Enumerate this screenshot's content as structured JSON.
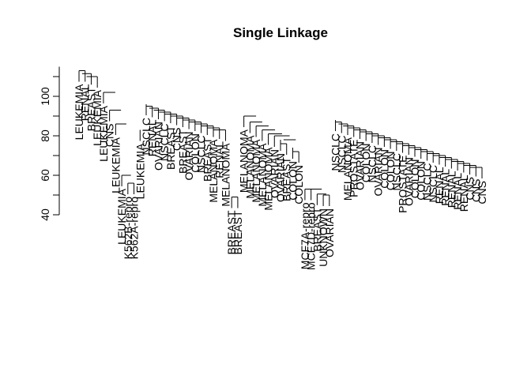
{
  "chart_data": {
    "type": "dendrogram",
    "title": "Single Linkage",
    "xlabel": "",
    "ylabel": "",
    "ylim": [
      40,
      115
    ],
    "y_ticks": [
      40,
      60,
      80,
      100
    ],
    "grid": false,
    "leaves": [
      {
        "label": "LEUKEMIA",
        "y": 113.0
      },
      {
        "label": "RENAL",
        "y": 113.0
      },
      {
        "label": "BREAST",
        "y": 111.5
      },
      {
        "label": "LEUKEMIA",
        "y": 110.0
      },
      {
        "label": "LEUKEMIA",
        "y": 102.0
      },
      {
        "label": "CNS",
        "y": 93.0
      },
      {
        "label": "LEUKEMIA",
        "y": 86.0
      },
      {
        "label": "LEUKEMIA",
        "y": 60.0
      },
      {
        "label": "K562B-repro",
        "y": 56.0
      },
      {
        "label": "K562A-repro",
        "y": 56.0
      },
      {
        "label": "LEUKEMIA",
        "y": 83.0
      },
      {
        "label": "NSCLC",
        "y": 96.0
      },
      {
        "label": "RENAL",
        "y": 95.0
      },
      {
        "label": "OVARIAN",
        "y": 94.0
      },
      {
        "label": "NSCLC",
        "y": 93.0
      },
      {
        "label": "BREAST",
        "y": 92.0
      },
      {
        "label": "CNS",
        "y": 91.0
      },
      {
        "label": "BREAST",
        "y": 90.0
      },
      {
        "label": "OVARIAN",
        "y": 89.0
      },
      {
        "label": "COLON",
        "y": 88.0
      },
      {
        "label": "NSCLC",
        "y": 87.0
      },
      {
        "label": "BREAST",
        "y": 86.0
      },
      {
        "label": "MELANOMA",
        "y": 85.0
      },
      {
        "label": "RENAL",
        "y": 84.0
      },
      {
        "label": "MELANOMA",
        "y": 83.0
      },
      {
        "label": "BREAST",
        "y": 49.0
      },
      {
        "label": "BREAST",
        "y": 49.0
      },
      {
        "label": "MELANOMA",
        "y": 90.0
      },
      {
        "label": "MELANOMA",
        "y": 87.0
      },
      {
        "label": "MELANOMA",
        "y": 85.0
      },
      {
        "label": "MELANOMA",
        "y": 83.0
      },
      {
        "label": "MELANOMA",
        "y": 81.0
      },
      {
        "label": "OVARIAN",
        "y": 80.0
      },
      {
        "label": "OVARIAN",
        "y": 78.0
      },
      {
        "label": "BREAST",
        "y": 76.0
      },
      {
        "label": "COLON",
        "y": 74.0
      },
      {
        "label": "COLON",
        "y": 72.0
      },
      {
        "label": "MCF7A-repro",
        "y": 53.0
      },
      {
        "label": "MCF7D-repro",
        "y": 53.0
      },
      {
        "label": "BREAST",
        "y": 50.5
      },
      {
        "label": "UNKNOWN",
        "y": 50.0
      },
      {
        "label": "OVARIAN",
        "y": 50.0
      },
      {
        "label": "NSCLC",
        "y": 88.0
      },
      {
        "label": "NSCLC",
        "y": 87.0
      },
      {
        "label": "MELANOMA",
        "y": 86.0
      },
      {
        "label": "PROSTATE",
        "y": 85.0
      },
      {
        "label": "OVARIAN",
        "y": 84.0
      },
      {
        "label": "COLON",
        "y": 83.0
      },
      {
        "label": "NSCLC",
        "y": 82.0
      },
      {
        "label": "OVARIAN",
        "y": 81.0
      },
      {
        "label": "COLON",
        "y": 80.0
      },
      {
        "label": "COLON",
        "y": 79.0
      },
      {
        "label": "NSCLC",
        "y": 78.0
      },
      {
        "label": "PROSTATE",
        "y": 77.0
      },
      {
        "label": "OVARIAN",
        "y": 76.0
      },
      {
        "label": "COLON",
        "y": 75.0
      },
      {
        "label": "COLON",
        "y": 74.0
      },
      {
        "label": "NSCLC",
        "y": 73.0
      },
      {
        "label": "NSCLC",
        "y": 72.0
      },
      {
        "label": "RENAL",
        "y": 71.0
      },
      {
        "label": "RENAL",
        "y": 70.0
      },
      {
        "label": "RENAL",
        "y": 69.0
      },
      {
        "label": "RENAL",
        "y": 68.0
      },
      {
        "label": "RENAL",
        "y": 67.0
      },
      {
        "label": "CNS",
        "y": 66.0
      },
      {
        "label": "CNS",
        "y": 65.0
      },
      {
        "label": "CNS",
        "y": 64.0
      }
    ],
    "merges": [
      {
        "x": [
          0,
          1
        ],
        "y": 113.0
      },
      {
        "x": [
          0.5,
          2
        ],
        "y": 111.5
      },
      {
        "x": [
          1.25,
          3
        ],
        "y": 110.0
      },
      {
        "x": [
          8,
          9
        ],
        "y": 56.0
      },
      {
        "x": [
          7,
          8.5
        ],
        "y": 60.0
      },
      {
        "x": [
          6,
          7.75
        ],
        "y": 86.0
      },
      {
        "x": [
          5,
          6.875
        ],
        "y": 93.0
      },
      {
        "x": [
          4,
          5.94
        ],
        "y": 102.0
      },
      {
        "x": [
          11,
          12
        ],
        "y": 95.0
      },
      {
        "x": [
          11.5,
          13
        ],
        "y": 94.0
      },
      {
        "x": [
          12.25,
          14
        ],
        "y": 93.0
      },
      {
        "x": [
          13.1,
          15
        ],
        "y": 92.0
      },
      {
        "x": [
          14.05,
          16
        ],
        "y": 91.0
      },
      {
        "x": [
          15.0,
          17
        ],
        "y": 90.0
      },
      {
        "x": [
          16.0,
          18
        ],
        "y": 89.0
      },
      {
        "x": [
          17.0,
          19
        ],
        "y": 88.0
      },
      {
        "x": [
          18.0,
          20
        ],
        "y": 87.0
      },
      {
        "x": [
          19.0,
          21
        ],
        "y": 86.0
      },
      {
        "x": [
          20.0,
          22
        ],
        "y": 85.0
      },
      {
        "x": [
          21.0,
          23
        ],
        "y": 84.0
      },
      {
        "x": [
          22.0,
          24
        ],
        "y": 83.0
      },
      {
        "x": [
          25,
          26
        ],
        "y": 49.0
      },
      {
        "x": [
          33,
          34
        ],
        "y": 76.0
      },
      {
        "x": [
          35,
          36
        ],
        "y": 72.0
      },
      {
        "x": [
          33.5,
          35.5
        ],
        "y": 78.0
      },
      {
        "x": [
          32,
          34.5
        ],
        "y": 80.0
      },
      {
        "x": [
          31,
          33.25
        ],
        "y": 81.0
      },
      {
        "x": [
          30,
          32.1
        ],
        "y": 83.0
      },
      {
        "x": [
          29,
          31.05
        ],
        "y": 85.0
      },
      {
        "x": [
          28,
          30.0
        ],
        "y": 87.0
      },
      {
        "x": [
          27,
          29.0
        ],
        "y": 90.0
      },
      {
        "x": [
          37,
          38
        ],
        "y": 53.0
      },
      {
        "x": [
          40,
          41
        ],
        "y": 50.0
      },
      {
        "x": [
          39,
          40.5
        ],
        "y": 50.5
      },
      {
        "x": [
          37.5,
          39.75
        ],
        "y": 53.0
      },
      {
        "x": [
          42,
          43
        ],
        "y": 87.0
      },
      {
        "x": [
          42.5,
          44
        ],
        "y": 86.0
      },
      {
        "x": [
          43.25,
          45
        ],
        "y": 85.0
      },
      {
        "x": [
          44.1,
          46
        ],
        "y": 84.0
      },
      {
        "x": [
          45.05,
          47
        ],
        "y": 83.0
      },
      {
        "x": [
          46.0,
          48
        ],
        "y": 82.0
      },
      {
        "x": [
          47.0,
          49
        ],
        "y": 81.0
      },
      {
        "x": [
          48.0,
          50
        ],
        "y": 80.0
      },
      {
        "x": [
          49.0,
          51
        ],
        "y": 79.0
      },
      {
        "x": [
          50.0,
          52
        ],
        "y": 78.0
      },
      {
        "x": [
          51.0,
          53
        ],
        "y": 77.0
      },
      {
        "x": [
          52.0,
          54
        ],
        "y": 76.0
      },
      {
        "x": [
          53.0,
          55
        ],
        "y": 75.0
      },
      {
        "x": [
          54.0,
          56
        ],
        "y": 74.0
      },
      {
        "x": [
          55.0,
          57
        ],
        "y": 73.0
      },
      {
        "x": [
          56.0,
          58
        ],
        "y": 72.0
      },
      {
        "x": [
          57.0,
          59
        ],
        "y": 71.0
      },
      {
        "x": [
          58.0,
          60
        ],
        "y": 70.0
      },
      {
        "x": [
          59.0,
          61
        ],
        "y": 69.0
      },
      {
        "x": [
          60.0,
          62
        ],
        "y": 68.0
      },
      {
        "x": [
          61.0,
          63
        ],
        "y": 67.0
      },
      {
        "x": [
          62.0,
          64
        ],
        "y": 66.0
      },
      {
        "x": [
          63.0,
          65
        ],
        "y": 65.0
      },
      {
        "x": [
          64.0,
          66
        ],
        "y": 64.0
      }
    ]
  }
}
